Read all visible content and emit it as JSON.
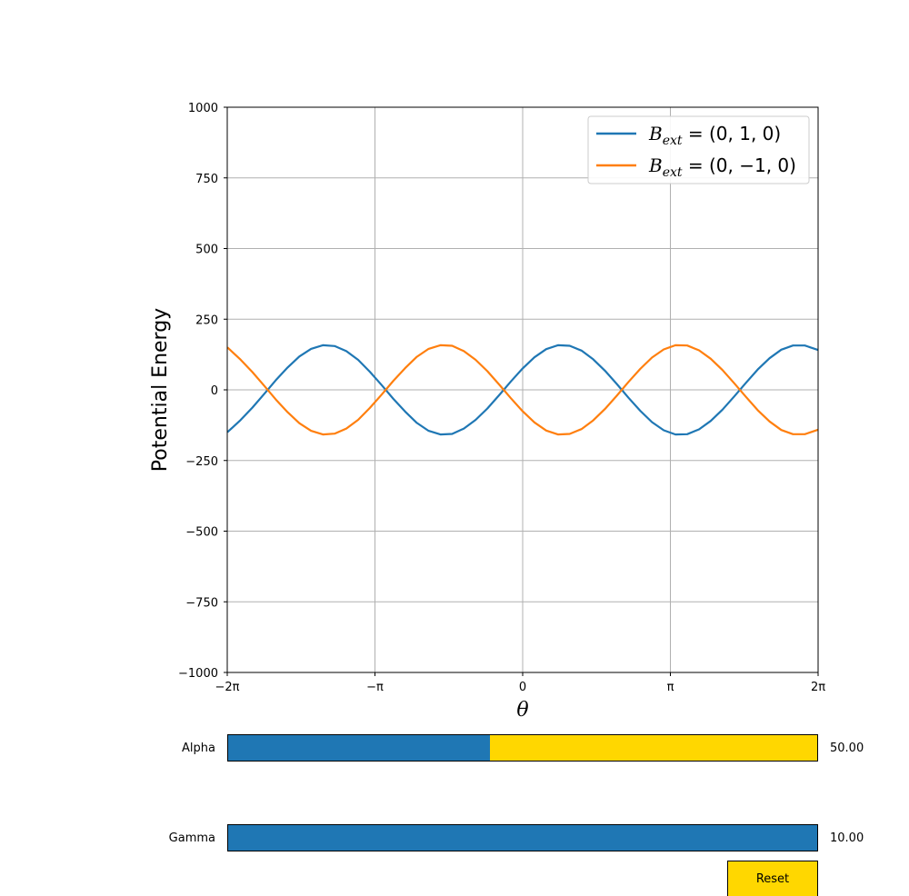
{
  "chart_data": {
    "type": "line",
    "title": "",
    "xlabel": "θ",
    "ylabel": "Potential Energy",
    "xlim": [
      -6.283185307,
      6.283185307
    ],
    "ylim": [
      -1000,
      1000
    ],
    "x_ticks": [
      -6.283185307,
      -3.141592654,
      0,
      3.141592654,
      6.283185307
    ],
    "x_tick_labels": [
      "−2π",
      "−π",
      "0",
      "π",
      "2π"
    ],
    "y_ticks": [
      -1000,
      -750,
      -500,
      -250,
      0,
      250,
      500,
      750,
      1000
    ],
    "y_tick_labels": [
      "−1000",
      "−750",
      "−500",
      "−250",
      "0",
      "250",
      "500",
      "750",
      "1000"
    ],
    "grid": true,
    "legend_position": "top-right",
    "x": [
      -6.28,
      -6.0,
      -5.75,
      -5.5,
      -5.25,
      -5.0,
      -4.75,
      -4.5,
      -4.25,
      -4.0,
      -3.75,
      -3.5,
      -3.25,
      -3.0,
      -2.75,
      -2.5,
      -2.25,
      -2.0,
      -1.75,
      -1.5,
      -1.25,
      -1.0,
      -0.75,
      -0.5,
      -0.25,
      0.0,
      0.25,
      0.5,
      0.75,
      1.0,
      1.25,
      1.5,
      1.75,
      2.0,
      2.25,
      2.5,
      2.75,
      3.0,
      3.25,
      3.5,
      3.75,
      4.0,
      4.25,
      4.5,
      4.75,
      5.0,
      5.25,
      5.5,
      5.75,
      6.0,
      6.28
    ],
    "series": [
      {
        "name_parts": {
          "prefix": "B",
          "sub": "ext",
          "suffix": " = (0, 1, 0)"
        },
        "color": "#1f77b4",
        "values": [
          -150,
          -107,
          -63,
          -15,
          34,
          79,
          118,
          145,
          158,
          155,
          137,
          106,
          64,
          17,
          -32,
          -77,
          -117,
          -145,
          -158,
          -156,
          -137,
          -106,
          -66,
          -19,
          30,
          76,
          115,
          144,
          158,
          156,
          139,
          108,
          68,
          21,
          -28,
          -74,
          -114,
          -143,
          -158,
          -157,
          -140,
          -110,
          -70,
          -23,
          25,
          72,
          112,
          142,
          157,
          157,
          141
        ]
      },
      {
        "name_parts": {
          "prefix": "B",
          "sub": "ext",
          "suffix": " = (0, −1, 0)"
        },
        "color": "#ff7f0e",
        "values": [
          150,
          107,
          63,
          15,
          -34,
          -79,
          -118,
          -145,
          -158,
          -155,
          -137,
          -106,
          -64,
          -17,
          32,
          77,
          117,
          145,
          158,
          156,
          137,
          106,
          66,
          19,
          -30,
          -76,
          -115,
          -144,
          -158,
          -156,
          -139,
          -108,
          -68,
          -21,
          28,
          74,
          114,
          143,
          158,
          157,
          140,
          110,
          70,
          23,
          -25,
          -72,
          -112,
          -142,
          -157,
          -157,
          -141
        ]
      }
    ]
  },
  "controls": {
    "alpha": {
      "label": "Alpha",
      "value_text": "50.00",
      "fraction": 0.444,
      "fill_color": "#1f77b4",
      "track_color": "#ffd700"
    },
    "gamma": {
      "label": "Gamma",
      "value_text": "10.00",
      "fraction": 1.0,
      "fill_color": "#1f77b4",
      "track_color": "#ffd700"
    },
    "reset_label": "Reset",
    "reset_color": "#ffd700"
  }
}
